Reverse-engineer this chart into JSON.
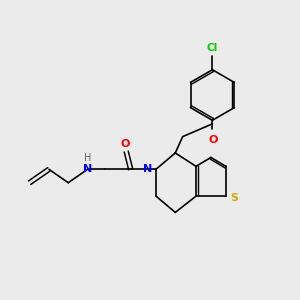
{
  "background_color": "#ebebeb",
  "bond_color": "#000000",
  "atom_colors": {
    "N": "#0000ff",
    "O_carbonyl": "#ff0000",
    "O_ether": "#ff0000",
    "S": "#ccaa00",
    "Cl": "#00cc00",
    "H": "#666666",
    "C": "#000000"
  },
  "figsize": [
    3.0,
    3.0
  ],
  "dpi": 100
}
